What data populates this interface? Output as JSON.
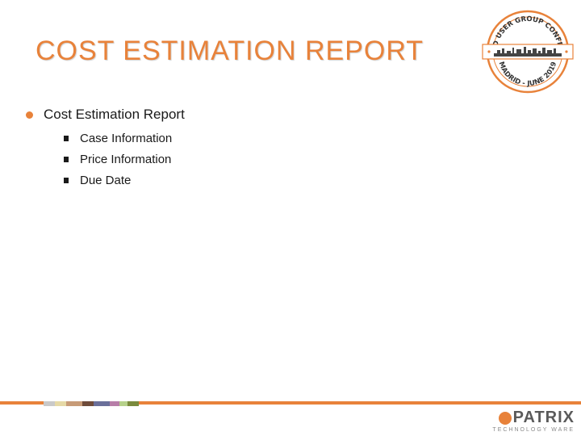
{
  "slide": {
    "title": "COST ESTIMATION REPORT",
    "bullet": "Cost Estimation Report",
    "subbullets": [
      "Case Information",
      "Price Information",
      "Due Date"
    ]
  },
  "seal": {
    "top_text": "MADRID USER GROUP CONFERENCE",
    "bottom_text": "MADRID - JUNE 2019"
  },
  "logo": {
    "name": "PATRIX",
    "tagline": "TECHNOLOGY WARE"
  },
  "colors": {
    "accent": "#e8823a",
    "text": "#1a1a1a",
    "swatches": [
      "#c9c9c9",
      "#e6d9a6",
      "#c79b77",
      "#6f4b3a",
      "#6a6f9a",
      "#b77ea8",
      "#b6d18a",
      "#7a8a3d"
    ]
  }
}
